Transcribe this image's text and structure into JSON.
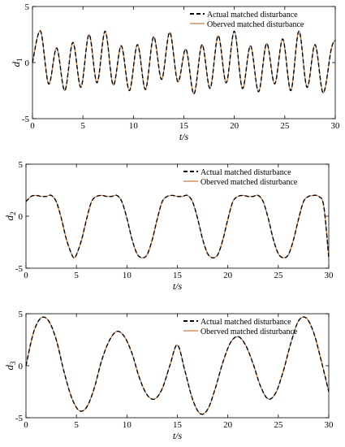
{
  "chart_data": [
    {
      "type": "line",
      "title": "",
      "xlabel": "t/s",
      "ylabel": "d",
      "ylabel_subscript": "1",
      "xlim": [
        0,
        30
      ],
      "ylim": [
        -5,
        5
      ],
      "xticks": [
        "0",
        "5",
        "10",
        "15",
        "20",
        "25",
        "30"
      ],
      "yticks": [
        "-5",
        "0",
        "5"
      ],
      "legend_position": "top-right",
      "series": [
        {
          "name": "Actual matched disturbance",
          "style": "dashed",
          "color": "#000000",
          "x": [
            0,
            0.8,
            1.6,
            2.4,
            3.2,
            4.0,
            4.8,
            5.6,
            6.4,
            7.2,
            8.0,
            8.8,
            9.6,
            10.4,
            11.2,
            12.0,
            12.8,
            13.6,
            14.4,
            15.2,
            16.0,
            16.8,
            17.6,
            18.4,
            19.2,
            20.0,
            20.8,
            21.6,
            22.4,
            23.2,
            24.0,
            24.8,
            25.6,
            26.4,
            27.2,
            28.0,
            28.8,
            29.6,
            30
          ],
          "y": [
            0,
            2.8,
            -1.9,
            1.3,
            -2.5,
            1.8,
            -2.2,
            2.5,
            -1.8,
            2.8,
            -2.0,
            1.5,
            -2.5,
            1.6,
            -2.4,
            2.3,
            -1.5,
            2.7,
            -1.7,
            1.2,
            -2.8,
            1.6,
            -2.3,
            2.4,
            -1.8,
            2.8,
            -2.3,
            1.5,
            -2.6,
            1.7,
            -1.9,
            2.1,
            -2.5,
            2.8,
            -2.2,
            1.6,
            -2.7,
            1.2,
            2.0
          ]
        },
        {
          "name": "Oberved matched disturbance",
          "style": "solid",
          "color": "#c87a40",
          "x": [
            0,
            0.8,
            1.6,
            2.4,
            3.2,
            4.0,
            4.8,
            5.6,
            6.4,
            7.2,
            8.0,
            8.8,
            9.6,
            10.4,
            11.2,
            12.0,
            12.8,
            13.6,
            14.4,
            15.2,
            16.0,
            16.8,
            17.6,
            18.4,
            19.2,
            20.0,
            20.8,
            21.6,
            22.4,
            23.2,
            24.0,
            24.8,
            25.6,
            26.4,
            27.2,
            28.0,
            28.8,
            29.6,
            30
          ],
          "y": [
            0,
            2.8,
            -1.9,
            1.3,
            -2.5,
            1.8,
            -2.2,
            2.5,
            -1.8,
            2.8,
            -2.0,
            1.5,
            -2.5,
            1.6,
            -2.4,
            2.3,
            -1.5,
            2.7,
            -1.7,
            1.2,
            -2.8,
            1.6,
            -2.3,
            2.4,
            -1.8,
            2.8,
            -2.3,
            1.5,
            -2.6,
            1.7,
            -1.9,
            2.1,
            -2.5,
            2.8,
            -2.2,
            1.6,
            -2.7,
            1.2,
            2.0
          ]
        }
      ]
    },
    {
      "type": "line",
      "title": "",
      "xlabel": "t/s",
      "ylabel": "d",
      "ylabel_subscript": "2",
      "xlim": [
        0,
        30
      ],
      "ylim": [
        -5,
        5
      ],
      "xticks": [
        "0",
        "5",
        "10",
        "15",
        "20",
        "25",
        "30"
      ],
      "yticks": [
        "-5",
        "0",
        "5"
      ],
      "legend_position": "top-right",
      "series": [
        {
          "name": "Actual matched disturbance",
          "style": "dashed",
          "color": "#000000",
          "x": [
            0,
            0.5,
            1.0,
            1.5,
            2.0,
            2.5,
            3.0,
            3.5,
            4.0,
            4.5,
            4.75,
            5.0,
            5.5,
            6.0,
            6.5,
            7.0,
            7.5,
            8.0,
            8.5,
            9.0,
            9.5,
            10.0,
            10.5,
            11.0,
            11.5,
            12.0,
            12.5,
            13.0,
            13.5,
            14.0,
            14.5,
            15.0,
            15.5,
            16.0,
            16.5,
            17.0,
            17.5,
            18.0,
            18.5,
            19.0,
            19.5,
            20.0,
            20.5,
            21.0,
            21.5,
            22.0,
            22.5,
            23.0,
            23.5,
            24.0,
            24.5,
            25.0,
            25.5,
            26.0,
            26.5,
            27.0,
            27.5,
            28.0,
            28.5,
            29.0,
            29.5,
            30.0
          ],
          "y": [
            1.4,
            1.9,
            2.0,
            1.9,
            1.9,
            2.0,
            1.4,
            -0.2,
            -2.2,
            -3.6,
            -4.0,
            -3.7,
            -2.3,
            -0.3,
            1.4,
            1.9,
            2.0,
            1.9,
            1.9,
            2.0,
            1.4,
            -0.2,
            -2.2,
            -3.6,
            -4.0,
            -3.7,
            -2.3,
            -0.3,
            1.4,
            1.9,
            2.0,
            1.9,
            1.9,
            2.0,
            1.4,
            -0.2,
            -2.2,
            -3.6,
            -4.0,
            -3.7,
            -2.3,
            -0.3,
            1.4,
            1.9,
            2.0,
            1.9,
            1.9,
            2.0,
            1.4,
            -0.2,
            -2.2,
            -3.6,
            -4.0,
            -3.7,
            -2.3,
            -0.3,
            1.4,
            1.9,
            2.0,
            1.9,
            1.0,
            -4.0
          ]
        },
        {
          "name": "Oberved matched disturbance",
          "style": "solid",
          "color": "#c87a40",
          "x": [
            0,
            0.5,
            1.0,
            1.5,
            2.0,
            2.5,
            3.0,
            3.5,
            4.0,
            4.5,
            4.75,
            5.0,
            5.5,
            6.0,
            6.5,
            7.0,
            7.5,
            8.0,
            8.5,
            9.0,
            9.5,
            10.0,
            10.5,
            11.0,
            11.5,
            12.0,
            12.5,
            13.0,
            13.5,
            14.0,
            14.5,
            15.0,
            15.5,
            16.0,
            16.5,
            17.0,
            17.5,
            18.0,
            18.5,
            19.0,
            19.5,
            20.0,
            20.5,
            21.0,
            21.5,
            22.0,
            22.5,
            23.0,
            23.5,
            24.0,
            24.5,
            25.0,
            25.5,
            26.0,
            26.5,
            27.0,
            27.5,
            28.0,
            28.5,
            29.0,
            29.5,
            30.0
          ],
          "y": [
            1.4,
            1.9,
            2.0,
            1.9,
            1.9,
            2.0,
            1.4,
            -0.2,
            -2.2,
            -3.6,
            -4.0,
            -3.7,
            -2.3,
            -0.3,
            1.4,
            1.9,
            2.0,
            1.9,
            1.9,
            2.0,
            1.4,
            -0.2,
            -2.2,
            -3.6,
            -4.0,
            -3.7,
            -2.3,
            -0.3,
            1.4,
            1.9,
            2.0,
            1.9,
            1.9,
            2.0,
            1.4,
            -0.2,
            -2.2,
            -3.6,
            -4.0,
            -3.7,
            -2.3,
            -0.3,
            1.4,
            1.9,
            2.0,
            1.9,
            1.9,
            2.0,
            1.4,
            -0.2,
            -2.2,
            -3.6,
            -4.0,
            -3.7,
            -2.3,
            -0.3,
            1.4,
            1.9,
            2.0,
            1.9,
            1.0,
            -4.0
          ]
        }
      ]
    },
    {
      "type": "line",
      "title": "",
      "xlabel": "t/s",
      "ylabel": "d",
      "ylabel_subscript": "3",
      "xlim": [
        0,
        30
      ],
      "ylim": [
        -5,
        5
      ],
      "xticks": [
        "0",
        "5",
        "10",
        "15",
        "20",
        "25",
        "30"
      ],
      "yticks": [
        "-5",
        "0",
        "5"
      ],
      "legend_position": "top-right",
      "series": [
        {
          "name": "Actual matched disturbance",
          "style": "dashed",
          "color": "#000000",
          "x": [
            0,
            0.75,
            1.5,
            2.25,
            3.0,
            3.75,
            4.5,
            5.25,
            6.0,
            6.75,
            7.5,
            8.25,
            9.0,
            9.75,
            10.5,
            11.25,
            12.0,
            12.75,
            13.5,
            14.25,
            15.0,
            15.75,
            16.5,
            17.25,
            18.0,
            18.75,
            19.5,
            20.25,
            21.0,
            21.75,
            22.5,
            23.25,
            24.0,
            24.75,
            25.5,
            26.25,
            27.0,
            27.75,
            28.5,
            29.25,
            30.0
          ],
          "y": [
            0,
            3.2,
            4.6,
            4.3,
            2.5,
            -0.5,
            -3.0,
            -4.3,
            -4.0,
            -2.2,
            0.5,
            2.4,
            3.3,
            2.8,
            1.2,
            -1.2,
            -2.8,
            -3.2,
            -2.2,
            0.0,
            2.0,
            -0.5,
            -3.2,
            -4.6,
            -4.2,
            -2.2,
            0.3,
            2.2,
            2.8,
            2.0,
            0.2,
            -2.0,
            -3.2,
            -2.6,
            -0.5,
            2.2,
            4.3,
            4.6,
            3.2,
            0.5,
            -2.5
          ]
        },
        {
          "name": "Oberved matched disturbance",
          "style": "solid",
          "color": "#c87a40",
          "x": [
            0,
            0.75,
            1.5,
            2.25,
            3.0,
            3.75,
            4.5,
            5.25,
            6.0,
            6.75,
            7.5,
            8.25,
            9.0,
            9.75,
            10.5,
            11.25,
            12.0,
            12.75,
            13.5,
            14.25,
            15.0,
            15.75,
            16.5,
            17.25,
            18.0,
            18.75,
            19.5,
            20.25,
            21.0,
            21.75,
            22.5,
            23.25,
            24.0,
            24.75,
            25.5,
            26.25,
            27.0,
            27.75,
            28.5,
            29.25,
            30.0
          ],
          "y": [
            0,
            3.2,
            4.6,
            4.3,
            2.5,
            -0.5,
            -3.0,
            -4.3,
            -4.0,
            -2.2,
            0.5,
            2.4,
            3.3,
            2.8,
            1.2,
            -1.2,
            -2.8,
            -3.2,
            -2.2,
            0.0,
            2.0,
            -0.5,
            -3.2,
            -4.6,
            -4.2,
            -2.2,
            0.3,
            2.2,
            2.8,
            2.0,
            0.2,
            -2.0,
            -3.2,
            -2.6,
            -0.5,
            2.2,
            4.3,
            4.6,
            3.2,
            0.5,
            -2.5
          ]
        }
      ]
    }
  ]
}
